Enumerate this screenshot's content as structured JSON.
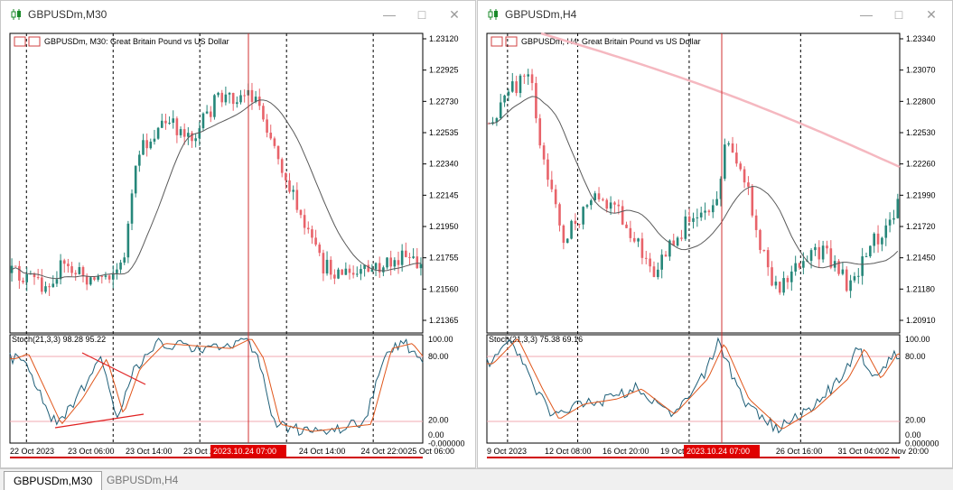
{
  "windows": [
    {
      "title": "GBPUSDm,M30",
      "chart_header": "GBPUSDm, M30:  Great Britain Pound vs US Dollar",
      "stoch_label": "Stoch(21,3,3) 98.28 95.22",
      "crosshair_time": "2023.10.24 07:00",
      "y_ticks": [
        "1.23120",
        "1.22925",
        "1.22730",
        "1.22535",
        "1.22340",
        "1.22145",
        "1.21950",
        "1.21755",
        "1.21560",
        "1.21365"
      ],
      "stoch_ticks": [
        "100.00",
        "80.00",
        "20.00",
        "0.00",
        "-0.000000"
      ],
      "x_ticks": [
        "22 Oct 2023",
        "23 Oct 06:00",
        "23 Oct 14:00",
        "23 Oct 22:00",
        "24 Oct 14:00",
        "24 Oct 22:00",
        "25 Oct 06:00"
      ]
    },
    {
      "title": "GBPUSDm,H4",
      "chart_header": "GBPUSDm, H4:  Great Britain Pound vs US Dollar",
      "stoch_label": "Stoch(21,3,3) 75.38 69.16",
      "crosshair_time": "2023.10.24 07:00",
      "y_ticks": [
        "1.23340",
        "1.23070",
        "1.22800",
        "1.22530",
        "1.22260",
        "1.21990",
        "1.21720",
        "1.21450",
        "1.21180",
        "1.20910"
      ],
      "stoch_ticks": [
        "100.00",
        "80.00",
        "20.00",
        "0.00",
        "0.000000"
      ],
      "x_ticks": [
        "9 Oct 2023",
        "12 Oct 08:00",
        "16 Oct 20:00",
        "19 Oct 12:00",
        "26 Oct 16:00",
        "31 Oct 04:00",
        "2 Nov 20:00"
      ]
    }
  ],
  "tabs": [
    {
      "label": "GBPUSDm,M30",
      "active": true
    },
    {
      "label": "GBPUSDm,H4",
      "active": false
    }
  ],
  "colors": {
    "bull": "#26877a",
    "bear": "#e8636a",
    "ma": "#5a5a5a",
    "ma_long": "#f5b8c0",
    "stoch_main": "#1f5f78",
    "stoch_signal": "#e0561b",
    "crosshair": "#d03030",
    "trendline": "#e02020",
    "time_badge_bg": "#e00000"
  },
  "icons": {
    "window": "candlestick-icon",
    "minimize": "minimize-icon",
    "maximize": "maximize-icon",
    "close": "close-icon"
  }
}
